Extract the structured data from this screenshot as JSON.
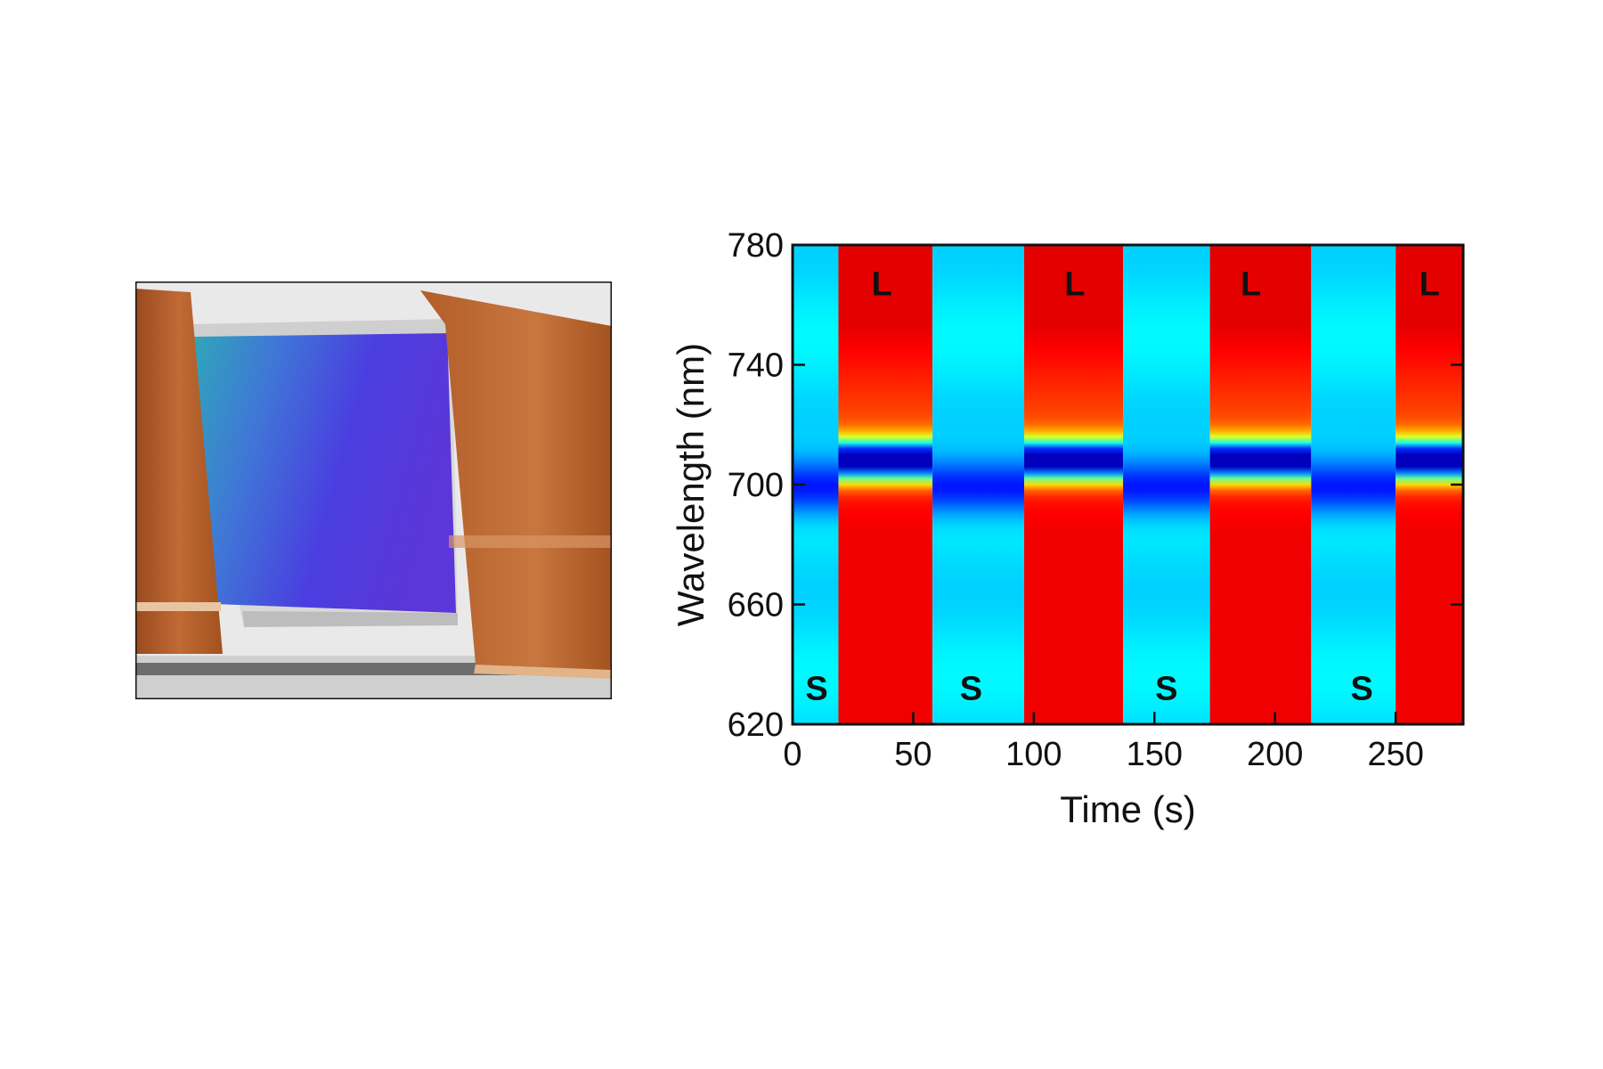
{
  "photo": {
    "icon": "iridescent-film-on-copper-electrodes-photo"
  },
  "chart_data": {
    "type": "heatmap",
    "title": "",
    "xlabel": "Time (s)",
    "ylabel": "Wavelength (nm)",
    "xlim": [
      0,
      278
    ],
    "ylim": [
      620,
      780
    ],
    "xticks": [
      "0",
      "50",
      "100",
      "150",
      "200",
      "250"
    ],
    "yticks": [
      "620",
      "660",
      "700",
      "740",
      "780"
    ],
    "colormap": "jet",
    "states": [
      {
        "label": "S",
        "start": 0,
        "end": 19,
        "dip_nm": 699
      },
      {
        "label": "L",
        "start": 19,
        "end": 58,
        "dip_nm": 708
      },
      {
        "label": "S",
        "start": 58,
        "end": 96,
        "dip_nm": 699
      },
      {
        "label": "L",
        "start": 96,
        "end": 137,
        "dip_nm": 708
      },
      {
        "label": "S",
        "start": 137,
        "end": 173,
        "dip_nm": 699
      },
      {
        "label": "L",
        "start": 173,
        "end": 215,
        "dip_nm": 708
      },
      {
        "label": "S",
        "start": 215,
        "end": 250,
        "dip_nm": 699
      },
      {
        "label": "L",
        "start": 250,
        "end": 278,
        "dip_nm": 708
      }
    ],
    "region_labels": [
      {
        "text": "S",
        "x": 10,
        "y": 632
      },
      {
        "text": "L",
        "x": 37,
        "y": 767
      },
      {
        "text": "S",
        "x": 74,
        "y": 632
      },
      {
        "text": "L",
        "x": 117,
        "y": 767
      },
      {
        "text": "S",
        "x": 155,
        "y": 632
      },
      {
        "text": "L",
        "x": 190,
        "y": 767
      },
      {
        "text": "S",
        "x": 236,
        "y": 632
      },
      {
        "text": "L",
        "x": 264,
        "y": 767
      }
    ]
  }
}
